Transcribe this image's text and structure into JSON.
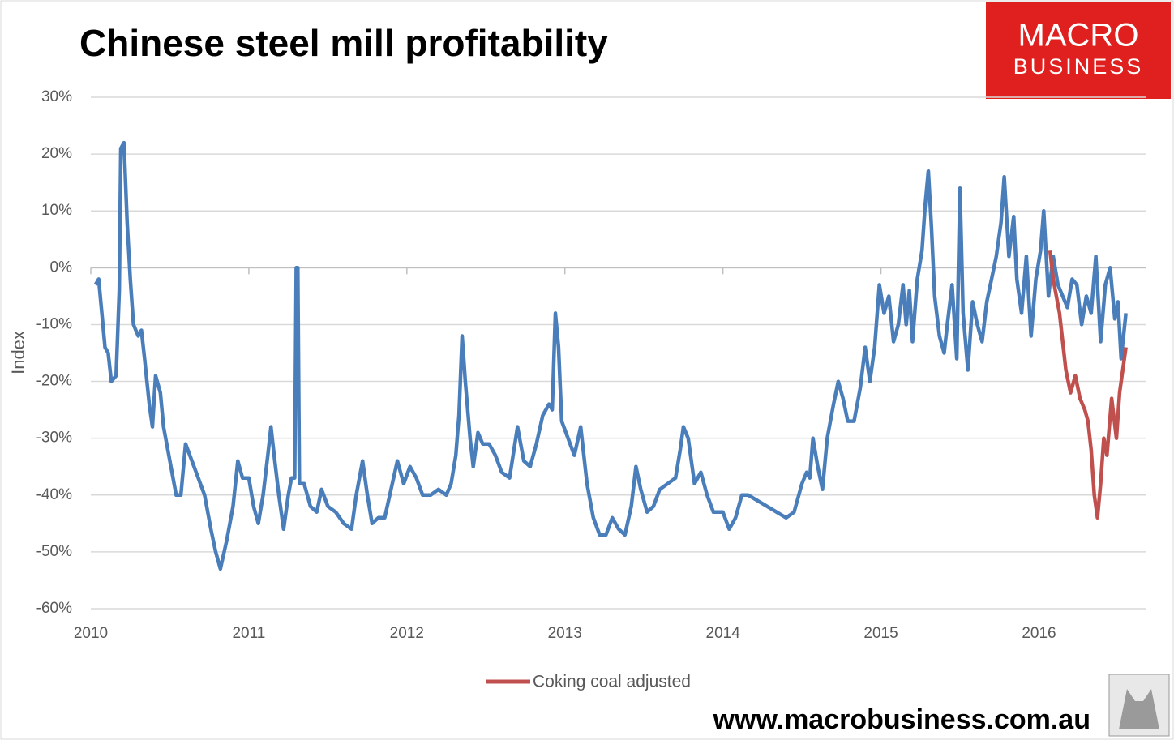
{
  "chart_data": {
    "type": "line",
    "title": "Chinese steel mill profitability",
    "y_label": "Index",
    "logo": [
      "MACRO",
      "BUSINESS"
    ],
    "website": "www.macrobusiness.com.au",
    "xlim": [
      2010,
      2016.68
    ],
    "xticks": [
      2010,
      2011,
      2012,
      2013,
      2014,
      2015,
      2016
    ],
    "ylim": [
      -60,
      30
    ],
    "yticks": [
      {
        "value": -60,
        "label": "-60%"
      },
      {
        "value": -50,
        "label": "-50%"
      },
      {
        "value": -40,
        "label": "-40%"
      },
      {
        "value": -30,
        "label": "-30%"
      },
      {
        "value": -20,
        "label": "-20%"
      },
      {
        "value": -10,
        "label": "-10%"
      },
      {
        "value": 0,
        "label": "0%"
      },
      {
        "value": 10,
        "label": "10%"
      },
      {
        "value": 20,
        "label": "20%"
      },
      {
        "value": 30,
        "label": "30%"
      }
    ],
    "grid": true,
    "legend": "bottom",
    "series": [
      {
        "color": "#4a7ebb",
        "x": [
          2010.03,
          2010.05,
          2010.07,
          2010.09,
          2010.11,
          2010.13,
          2010.16,
          2010.18,
          2010.19,
          2010.21,
          2010.23,
          2010.25,
          2010.27,
          2010.3,
          2010.32,
          2010.34,
          2010.37,
          2010.39,
          2010.41,
          2010.44,
          2010.46,
          2010.5,
          2010.54,
          2010.57,
          2010.6,
          2010.64,
          2010.68,
          2010.72,
          2010.76,
          2010.79,
          2010.82,
          2010.86,
          2010.9,
          2010.93,
          2010.96,
          2011.0,
          2011.03,
          2011.06,
          2011.09,
          2011.12,
          2011.14,
          2011.16,
          2011.19,
          2011.22,
          2011.25,
          2011.27,
          2011.29,
          2011.3,
          2011.31,
          2011.32,
          2011.35,
          2011.39,
          2011.43,
          2011.46,
          2011.5,
          2011.55,
          2011.6,
          2011.65,
          2011.68,
          2011.72,
          2011.75,
          2011.78,
          2011.82,
          2011.86,
          2011.9,
          2011.94,
          2011.98,
          2012.02,
          2012.06,
          2012.1,
          2012.15,
          2012.2,
          2012.25,
          2012.28,
          2012.31,
          2012.33,
          2012.35,
          2012.37,
          2012.4,
          2012.42,
          2012.45,
          2012.48,
          2012.52,
          2012.56,
          2012.6,
          2012.65,
          2012.7,
          2012.74,
          2012.78,
          2012.82,
          2012.86,
          2012.9,
          2012.92,
          2012.94,
          2012.96,
          2012.98,
          2013.02,
          2013.06,
          2013.1,
          2013.14,
          2013.18,
          2013.22,
          2013.26,
          2013.3,
          2013.34,
          2013.38,
          2013.42,
          2013.45,
          2013.48,
          2013.52,
          2013.56,
          2013.6,
          2013.65,
          2013.7,
          2013.73,
          2013.75,
          2013.78,
          2013.82,
          2013.86,
          2013.9,
          2013.94,
          2014.0,
          2014.04,
          2014.08,
          2014.12,
          2014.16,
          2014.22,
          2014.28,
          2014.34,
          2014.4,
          2014.45,
          2014.5,
          2014.53,
          2014.55,
          2014.57,
          2014.6,
          2014.63,
          2014.66,
          2014.7,
          2014.73,
          2014.76,
          2014.79,
          2014.83,
          2014.87,
          2014.9,
          2014.93,
          2014.96,
          2014.99,
          2015.02,
          2015.05,
          2015.08,
          2015.11,
          2015.14,
          2015.16,
          2015.18,
          2015.2,
          2015.23,
          2015.26,
          2015.28,
          2015.3,
          2015.32,
          2015.34,
          2015.37,
          2015.4,
          2015.42,
          2015.45,
          2015.48,
          2015.5,
          2015.52,
          2015.55,
          2015.58,
          2015.61,
          2015.64,
          2015.67,
          2015.7,
          2015.73,
          2015.76,
          2015.78,
          2015.81,
          2015.84,
          2015.86,
          2015.89,
          2015.92,
          2015.95,
          2015.98,
          2016.01,
          2016.03,
          2016.06,
          2016.09,
          2016.12,
          2016.15,
          2016.18,
          2016.21,
          2016.24,
          2016.27,
          2016.3,
          2016.33,
          2016.36,
          2016.39,
          2016.42,
          2016.45,
          2016.48,
          2016.5,
          2016.52,
          2016.55
        ],
        "values": [
          -3,
          -2,
          -8,
          -14,
          -15,
          -20,
          -19,
          -4,
          21,
          22,
          8,
          -2,
          -10,
          -12,
          -11,
          -16,
          -24,
          -28,
          -19,
          -22,
          -28,
          -34,
          -40,
          -40,
          -31,
          -34,
          -37,
          -40,
          -46,
          -50,
          -53,
          -48,
          -42,
          -34,
          -37,
          -37,
          -42,
          -45,
          -40,
          -33,
          -28,
          -33,
          -40,
          -46,
          -40,
          -37,
          -37,
          0,
          0,
          -38,
          -38,
          -42,
          -43,
          -39,
          -42,
          -43,
          -45,
          -46,
          -40,
          -34,
          -40,
          -45,
          -44,
          -44,
          -39,
          -34,
          -38,
          -35,
          -37,
          -40,
          -40,
          -39,
          -40,
          -38,
          -33,
          -26,
          -12,
          -20,
          -30,
          -35,
          -29,
          -31,
          -31,
          -33,
          -36,
          -37,
          -28,
          -34,
          -35,
          -31,
          -26,
          -24,
          -25,
          -8,
          -14,
          -27,
          -30,
          -33,
          -28,
          -38,
          -44,
          -47,
          -47,
          -44,
          -46,
          -47,
          -42,
          -35,
          -39,
          -43,
          -42,
          -39,
          -38,
          -37,
          -32,
          -28,
          -30,
          -38,
          -36,
          -40,
          -43,
          -43,
          -46,
          -44,
          -40,
          -40,
          -41,
          -42,
          -43,
          -44,
          -43,
          -38,
          -36,
          -37,
          -30,
          -35,
          -39,
          -30,
          -24,
          -20,
          -23,
          -27,
          -27,
          -21,
          -14,
          -20,
          -14,
          -3,
          -8,
          -5,
          -13,
          -10,
          -3,
          -10,
          -4,
          -13,
          -2,
          3,
          11,
          17,
          7,
          -5,
          -12,
          -15,
          -10,
          -3,
          -16,
          14,
          -8,
          -18,
          -6,
          -10,
          -13,
          -6,
          -2,
          2,
          8,
          16,
          2,
          9,
          -2,
          -8,
          2,
          -12,
          -2,
          3,
          10,
          -5,
          2,
          -3,
          -5,
          -7,
          -2,
          -3,
          -10,
          -5,
          -8,
          2,
          -13,
          -3,
          0,
          -9,
          -6,
          -16,
          -8
        ]
      },
      {
        "name": "Coking coal adjusted",
        "color": "#c0504d",
        "x": [
          2016.07,
          2016.09,
          2016.11,
          2016.13,
          2016.15,
          2016.17,
          2016.2,
          2016.23,
          2016.26,
          2016.29,
          2016.31,
          2016.33,
          2016.35,
          2016.37,
          2016.39,
          2016.41,
          2016.43,
          2016.46,
          2016.49,
          2016.51,
          2016.53,
          2016.55
        ],
        "values": [
          3,
          -2,
          -5,
          -8,
          -13,
          -18,
          -22,
          -19,
          -23,
          -25,
          -27,
          -32,
          -40,
          -44,
          -38,
          -30,
          -33,
          -23,
          -30,
          -22,
          -18,
          -14
        ]
      }
    ]
  }
}
